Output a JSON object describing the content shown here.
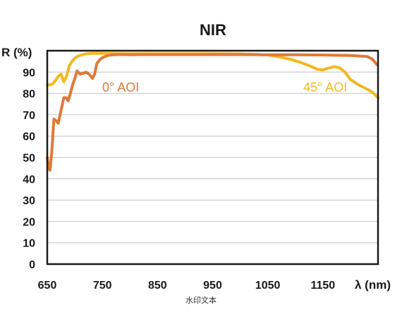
{
  "chart_data": {
    "type": "line",
    "title": "NIR",
    "xlabel": "λ (nm)",
    "ylabel": "R (%)",
    "xlim": [
      650,
      1250
    ],
    "ylim": [
      0,
      100
    ],
    "x_ticks": [
      650,
      750,
      850,
      950,
      1050,
      1150
    ],
    "y_ticks": [
      0,
      10,
      20,
      30,
      40,
      50,
      60,
      70,
      80,
      90
    ],
    "grid": "horizontal",
    "series": [
      {
        "name": "0° AOI",
        "color": "#e07a38",
        "x": [
          650,
          653,
          655,
          658,
          662,
          667,
          670,
          675,
          680,
          684,
          688,
          692,
          696,
          700,
          704,
          710,
          716,
          720,
          726,
          732,
          736,
          740,
          746,
          752,
          760,
          770,
          780,
          790,
          800,
          820,
          850,
          900,
          950,
          1000,
          1050,
          1100,
          1150,
          1200,
          1230,
          1240,
          1248
        ],
        "y": [
          50,
          45,
          44,
          52,
          68,
          67,
          66,
          72,
          78,
          78,
          76.5,
          80,
          84,
          87,
          90.5,
          89,
          89.5,
          90,
          89,
          87,
          89,
          94,
          96,
          97,
          97.8,
          98.1,
          98.2,
          98.2,
          98.1,
          98.2,
          98.2,
          98.2,
          98.2,
          98.2,
          98.1,
          98.1,
          98,
          97.8,
          97.3,
          96,
          93.5
        ]
      },
      {
        "name": "45° AOI",
        "color": "#f2b81f",
        "x": [
          650,
          655,
          660,
          665,
          670,
          675,
          680,
          685,
          690,
          695,
          700,
          706,
          712,
          720,
          730,
          740,
          760,
          780,
          800,
          850,
          900,
          950,
          1000,
          1030,
          1050,
          1070,
          1090,
          1110,
          1130,
          1140,
          1150,
          1160,
          1170,
          1180,
          1190,
          1200,
          1215,
          1230,
          1240,
          1250
        ],
        "y": [
          84,
          84,
          84.5,
          86,
          88,
          89,
          85.5,
          88,
          93,
          95,
          96.5,
          97.5,
          98,
          98.5,
          98.7,
          98.8,
          98.7,
          98.6,
          98.6,
          98.6,
          98.6,
          98.6,
          98.5,
          98.3,
          98,
          97.2,
          96,
          94.5,
          92.5,
          91.3,
          91,
          91.8,
          92.5,
          92,
          90,
          86.5,
          84,
          82,
          80.5,
          78
        ]
      }
    ]
  },
  "watermark": "水印文本"
}
